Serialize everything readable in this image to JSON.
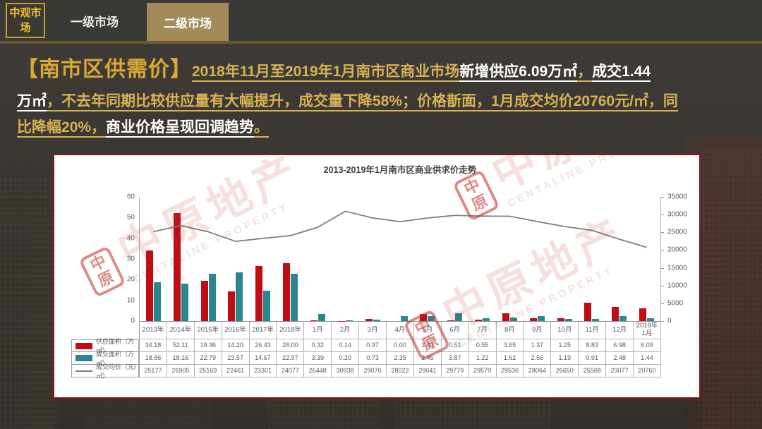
{
  "topbar": {
    "badge": "中观市场",
    "tabs": [
      {
        "label": "一级市场",
        "active": false
      },
      {
        "label": "二级市场",
        "active": true
      }
    ]
  },
  "headline": {
    "lines": [
      [
        {
          "text": "【南市区供需价】",
          "style": "title"
        },
        {
          "text": "2018年11月至2019年1月南市区商业市场",
          "style": "gold"
        },
        {
          "text": "新增供应6.09万㎡",
          "style": "white"
        },
        {
          "text": "，",
          "style": "gold"
        },
        {
          "text": "成交1.44",
          "style": "white"
        }
      ],
      [
        {
          "text": "万㎡",
          "style": "white"
        },
        {
          "text": "，不去年同期比较供应量有大幅提升，成交量下降58%；价格斮面，1月成交均价20760元/㎡，同",
          "style": "gold"
        }
      ],
      [
        {
          "text": "比降幅20%，",
          "style": "gold"
        },
        {
          "text": "商业价格呈现回调趋势",
          "style": "white"
        },
        {
          "text": "。",
          "style": "gold"
        }
      ]
    ]
  },
  "watermark": {
    "brand": "中原地产",
    "brand_en": "CENTALINE PROPERTY",
    "logo_top": "中",
    "logo_bottom": "原"
  },
  "chart_data": {
    "type": "bar",
    "combo_with_line": true,
    "title": "2013-2019年1月南市区商业供求价走势",
    "categories": [
      "2013年",
      "2014年",
      "2015年",
      "2016年",
      "2017年",
      "2018年",
      "1月",
      "2月",
      "3月",
      "4月",
      "5月",
      "6月",
      "7月",
      "8月",
      "9月",
      "10月",
      "11月",
      "12月",
      "2019年1月"
    ],
    "series": [
      {
        "name": "供应面积（万㎡）",
        "kind": "bar",
        "axis": "left",
        "color": "#c00d14",
        "values": [
          34.18,
          52.11,
          19.36,
          14.2,
          26.43,
          28.0,
          0.32,
          0.14,
          0.97,
          0.0,
          3.43,
          0.51,
          0.55,
          3.65,
          1.37,
          1.25,
          8.83,
          6.98,
          6.09
        ]
      },
      {
        "name": "成交面积（万㎡）",
        "kind": "bar",
        "axis": "left",
        "color": "#28878f",
        "values": [
          18.86,
          18.16,
          22.79,
          23.57,
          14.67,
          22.97,
          3.39,
          0.2,
          0.73,
          2.35,
          2.45,
          3.87,
          1.22,
          1.62,
          2.56,
          1.19,
          0.91,
          2.48,
          1.44
        ]
      },
      {
        "name": "成交均价（元/㎡）",
        "kind": "line",
        "axis": "right",
        "color": "#7f7f7f",
        "values": [
          25177,
          26905,
          25169,
          22461,
          23301,
          24077,
          26448,
          30938,
          29070,
          28022,
          29041,
          29779,
          29579,
          29536,
          28064,
          26650,
          25568,
          23077,
          20760
        ]
      }
    ],
    "left_axis": {
      "min": 0,
      "max": 60,
      "ticks": [
        60,
        50,
        40,
        30,
        20,
        10,
        0
      ]
    },
    "right_axis": {
      "min": 0,
      "max": 35000,
      "ticks": [
        35000,
        30000,
        25000,
        20000,
        15000,
        10000,
        5000,
        0
      ]
    },
    "grid": false,
    "legend_position": "table-left"
  }
}
